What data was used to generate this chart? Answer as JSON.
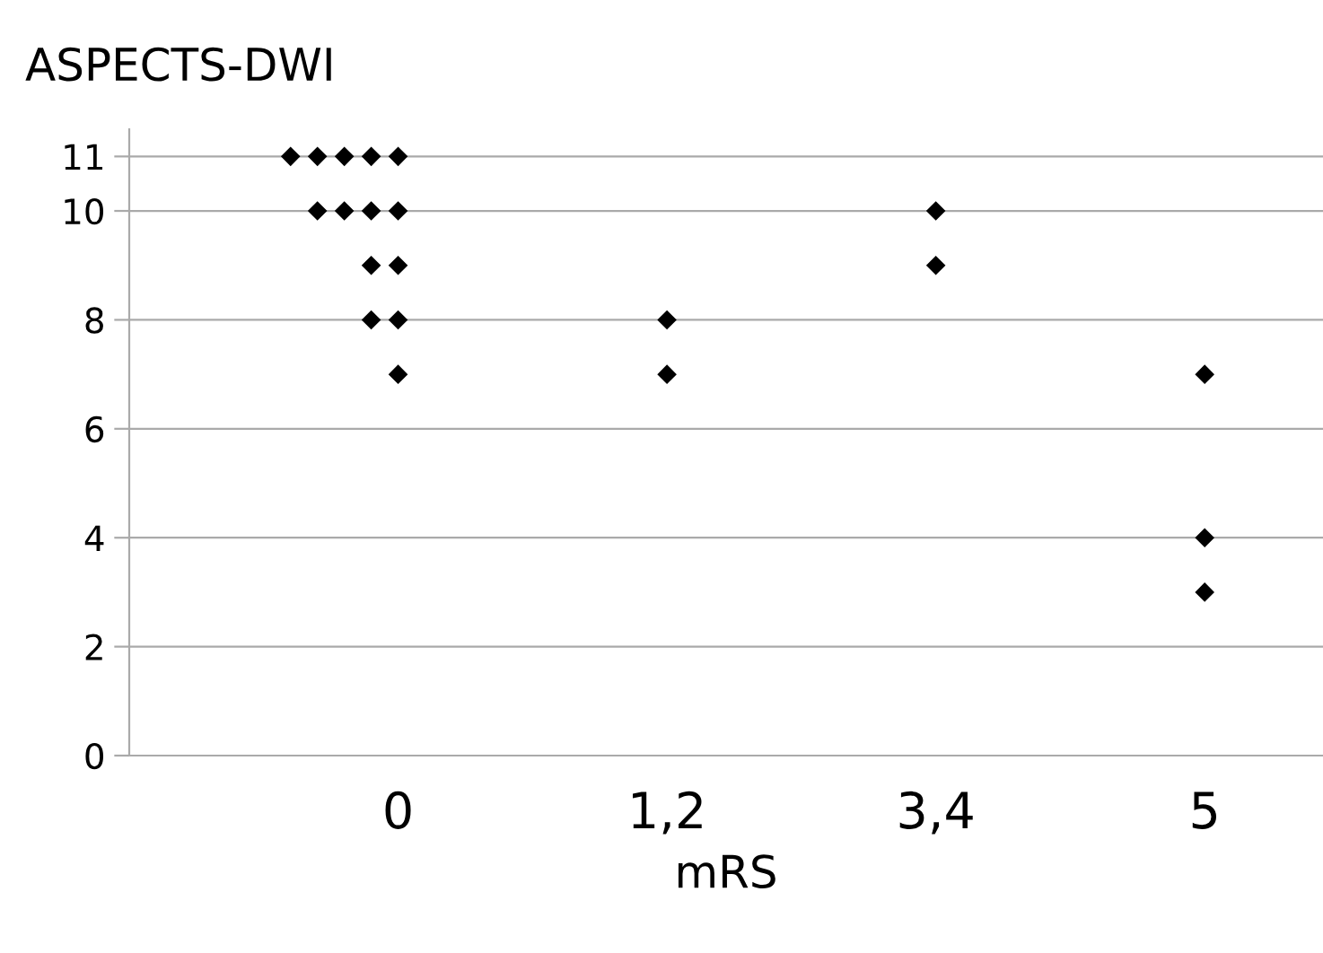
{
  "chart_data": {
    "type": "scatter",
    "title": "ASPECTS-DWI",
    "xlabel": "mRS",
    "categories": [
      "0",
      "1,2",
      "3,4",
      "5"
    ],
    "series": [
      {
        "color": "#000000",
        "x": [
          "0",
          "0",
          "0",
          "0",
          "0",
          "0",
          "0",
          "0",
          "0",
          "0",
          "0",
          "0",
          "0",
          "0",
          "1,2",
          "1,2",
          "3,4",
          "3,4",
          "5",
          "5",
          "5"
        ],
        "values": [
          11,
          11,
          11,
          11,
          11,
          10,
          10,
          10,
          10,
          9,
          9,
          8,
          8,
          7,
          8,
          7,
          10,
          9,
          7,
          4,
          3
        ]
      }
    ],
    "ylim": [
      0,
      11.5
    ],
    "yticks": [
      0,
      2,
      4,
      6,
      8,
      10,
      11
    ],
    "grid": "y",
    "marker": "diamond",
    "legend": false
  }
}
